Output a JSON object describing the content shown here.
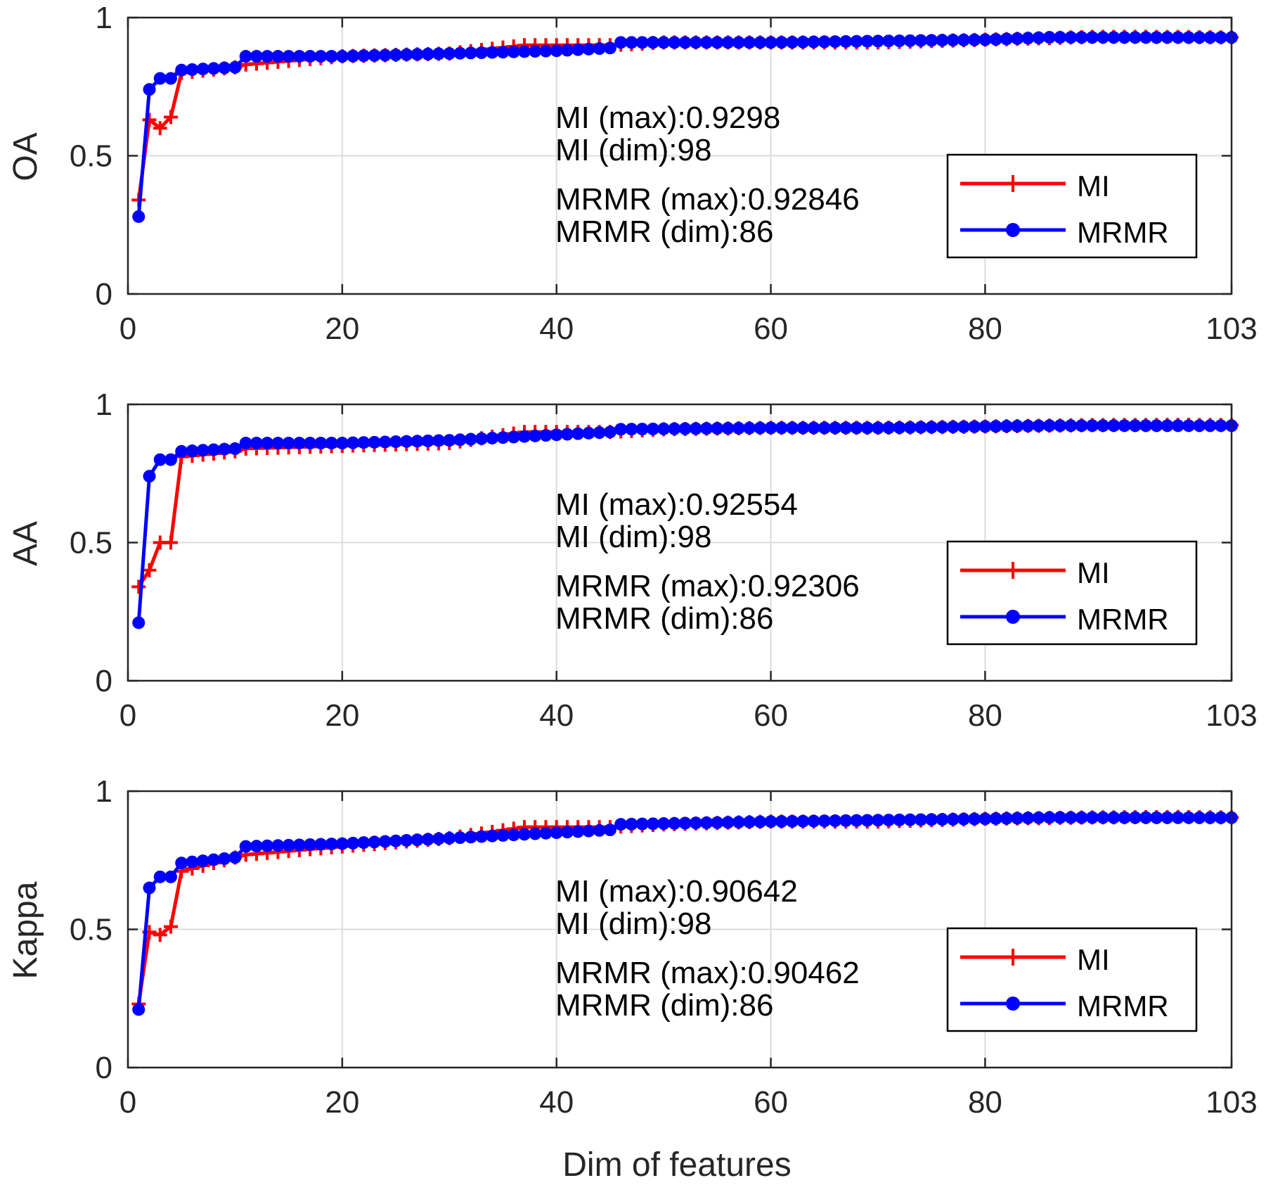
{
  "colors": {
    "mi": "#ff0000",
    "mrmr": "#0000ff",
    "grid": "#dcdcdc",
    "axis": "#262626"
  },
  "chart_data": [
    {
      "type": "line",
      "ylabel": "OA",
      "xlabel": "",
      "xlim": [
        0,
        103
      ],
      "ylim": [
        0,
        1
      ],
      "xticks": [
        "0",
        "20",
        "40",
        "60",
        "80",
        "103"
      ],
      "xtick_values": [
        0,
        20,
        40,
        60,
        80,
        103
      ],
      "yticks": [
        "0",
        "0.5",
        "1"
      ],
      "ytick_values": [
        0,
        0.5,
        1
      ],
      "grid": true,
      "legend_position": "right",
      "annotations": [
        "MI (max):0.9298",
        "MI (dim):98",
        "MRMR (max):0.92846",
        "MRMR (dim):86"
      ],
      "series": [
        {
          "name": "MI",
          "marker": "plus",
          "color": "#ff0000",
          "anchors": [
            [
              1,
              0.34
            ],
            [
              2,
              0.63
            ],
            [
              3,
              0.6
            ],
            [
              4,
              0.64
            ],
            [
              5,
              0.8
            ],
            [
              10,
              0.82
            ],
            [
              11,
              0.83
            ],
            [
              20,
              0.86
            ],
            [
              30,
              0.87
            ],
            [
              37,
              0.9
            ],
            [
              45,
              0.9
            ],
            [
              50,
              0.91
            ],
            [
              60,
              0.91
            ],
            [
              70,
              0.91
            ],
            [
              80,
              0.92
            ],
            [
              90,
              0.93
            ],
            [
              98,
              0.9298
            ],
            [
              103,
              0.928
            ]
          ]
        },
        {
          "name": "MRMR",
          "marker": "dot",
          "color": "#0000ff",
          "anchors": [
            [
              1,
              0.28
            ],
            [
              2,
              0.74
            ],
            [
              3,
              0.78
            ],
            [
              4,
              0.78
            ],
            [
              5,
              0.81
            ],
            [
              10,
              0.82
            ],
            [
              11,
              0.86
            ],
            [
              20,
              0.86
            ],
            [
              30,
              0.87
            ],
            [
              40,
              0.88
            ],
            [
              45,
              0.89
            ],
            [
              46,
              0.91
            ],
            [
              60,
              0.91
            ],
            [
              70,
              0.915
            ],
            [
              80,
              0.92
            ],
            [
              86,
              0.92846
            ],
            [
              103,
              0.928
            ]
          ]
        }
      ]
    },
    {
      "type": "line",
      "ylabel": "AA",
      "xlabel": "",
      "xlim": [
        0,
        103
      ],
      "ylim": [
        0,
        1
      ],
      "xticks": [
        "0",
        "20",
        "40",
        "60",
        "80",
        "103"
      ],
      "xtick_values": [
        0,
        20,
        40,
        60,
        80,
        103
      ],
      "yticks": [
        "0",
        "0.5",
        "1"
      ],
      "ytick_values": [
        0,
        0.5,
        1
      ],
      "grid": true,
      "legend_position": "right",
      "annotations": [
        "MI (max):0.92554",
        "MI (dim):98",
        "MRMR (max):0.92306",
        "MRMR (dim):86"
      ],
      "series": [
        {
          "name": "MI",
          "marker": "plus",
          "color": "#ff0000",
          "anchors": [
            [
              1,
              0.34
            ],
            [
              2,
              0.4
            ],
            [
              3,
              0.5
            ],
            [
              4,
              0.5
            ],
            [
              5,
              0.81
            ],
            [
              10,
              0.83
            ],
            [
              11,
              0.84
            ],
            [
              20,
              0.85
            ],
            [
              30,
              0.86
            ],
            [
              37,
              0.9
            ],
            [
              45,
              0.9
            ],
            [
              50,
              0.91
            ],
            [
              60,
              0.915
            ],
            [
              70,
              0.915
            ],
            [
              80,
              0.92
            ],
            [
              90,
              0.925
            ],
            [
              98,
              0.92554
            ],
            [
              103,
              0.925
            ]
          ]
        },
        {
          "name": "MRMR",
          "marker": "dot",
          "color": "#0000ff",
          "anchors": [
            [
              1,
              0.21
            ],
            [
              2,
              0.74
            ],
            [
              3,
              0.8
            ],
            [
              4,
              0.8
            ],
            [
              5,
              0.83
            ],
            [
              10,
              0.84
            ],
            [
              11,
              0.86
            ],
            [
              20,
              0.86
            ],
            [
              30,
              0.87
            ],
            [
              40,
              0.89
            ],
            [
              45,
              0.9
            ],
            [
              46,
              0.91
            ],
            [
              60,
              0.915
            ],
            [
              70,
              0.915
            ],
            [
              80,
              0.92
            ],
            [
              86,
              0.92306
            ],
            [
              103,
              0.923
            ]
          ]
        }
      ]
    },
    {
      "type": "line",
      "ylabel": "Kappa",
      "xlabel": "Dim of features",
      "xlim": [
        0,
        103
      ],
      "ylim": [
        0,
        1
      ],
      "xticks": [
        "0",
        "20",
        "40",
        "60",
        "80",
        "103"
      ],
      "xtick_values": [
        0,
        20,
        40,
        60,
        80,
        103
      ],
      "yticks": [
        "0",
        "0.5",
        "1"
      ],
      "ytick_values": [
        0,
        0.5,
        1
      ],
      "grid": true,
      "legend_position": "right",
      "annotations": [
        "MI (max):0.90642",
        "MI (dim):98",
        "MRMR (max):0.90462",
        "MRMR (dim):86"
      ],
      "series": [
        {
          "name": "MI",
          "marker": "plus",
          "color": "#ff0000",
          "anchors": [
            [
              1,
              0.23
            ],
            [
              2,
              0.49
            ],
            [
              3,
              0.48
            ],
            [
              4,
              0.51
            ],
            [
              5,
              0.71
            ],
            [
              10,
              0.76
            ],
            [
              11,
              0.77
            ],
            [
              20,
              0.8
            ],
            [
              30,
              0.83
            ],
            [
              37,
              0.87
            ],
            [
              45,
              0.87
            ],
            [
              50,
              0.88
            ],
            [
              60,
              0.89
            ],
            [
              70,
              0.89
            ],
            [
              80,
              0.9
            ],
            [
              90,
              0.905
            ],
            [
              98,
              0.90642
            ],
            [
              103,
              0.905
            ]
          ]
        },
        {
          "name": "MRMR",
          "marker": "dot",
          "color": "#0000ff",
          "anchors": [
            [
              1,
              0.21
            ],
            [
              2,
              0.65
            ],
            [
              3,
              0.69
            ],
            [
              4,
              0.69
            ],
            [
              5,
              0.74
            ],
            [
              10,
              0.76
            ],
            [
              11,
              0.8
            ],
            [
              20,
              0.81
            ],
            [
              30,
              0.83
            ],
            [
              40,
              0.85
            ],
            [
              45,
              0.86
            ],
            [
              46,
              0.88
            ],
            [
              60,
              0.89
            ],
            [
              70,
              0.895
            ],
            [
              80,
              0.9
            ],
            [
              86,
              0.90462
            ],
            [
              103,
              0.904
            ]
          ]
        }
      ]
    }
  ]
}
